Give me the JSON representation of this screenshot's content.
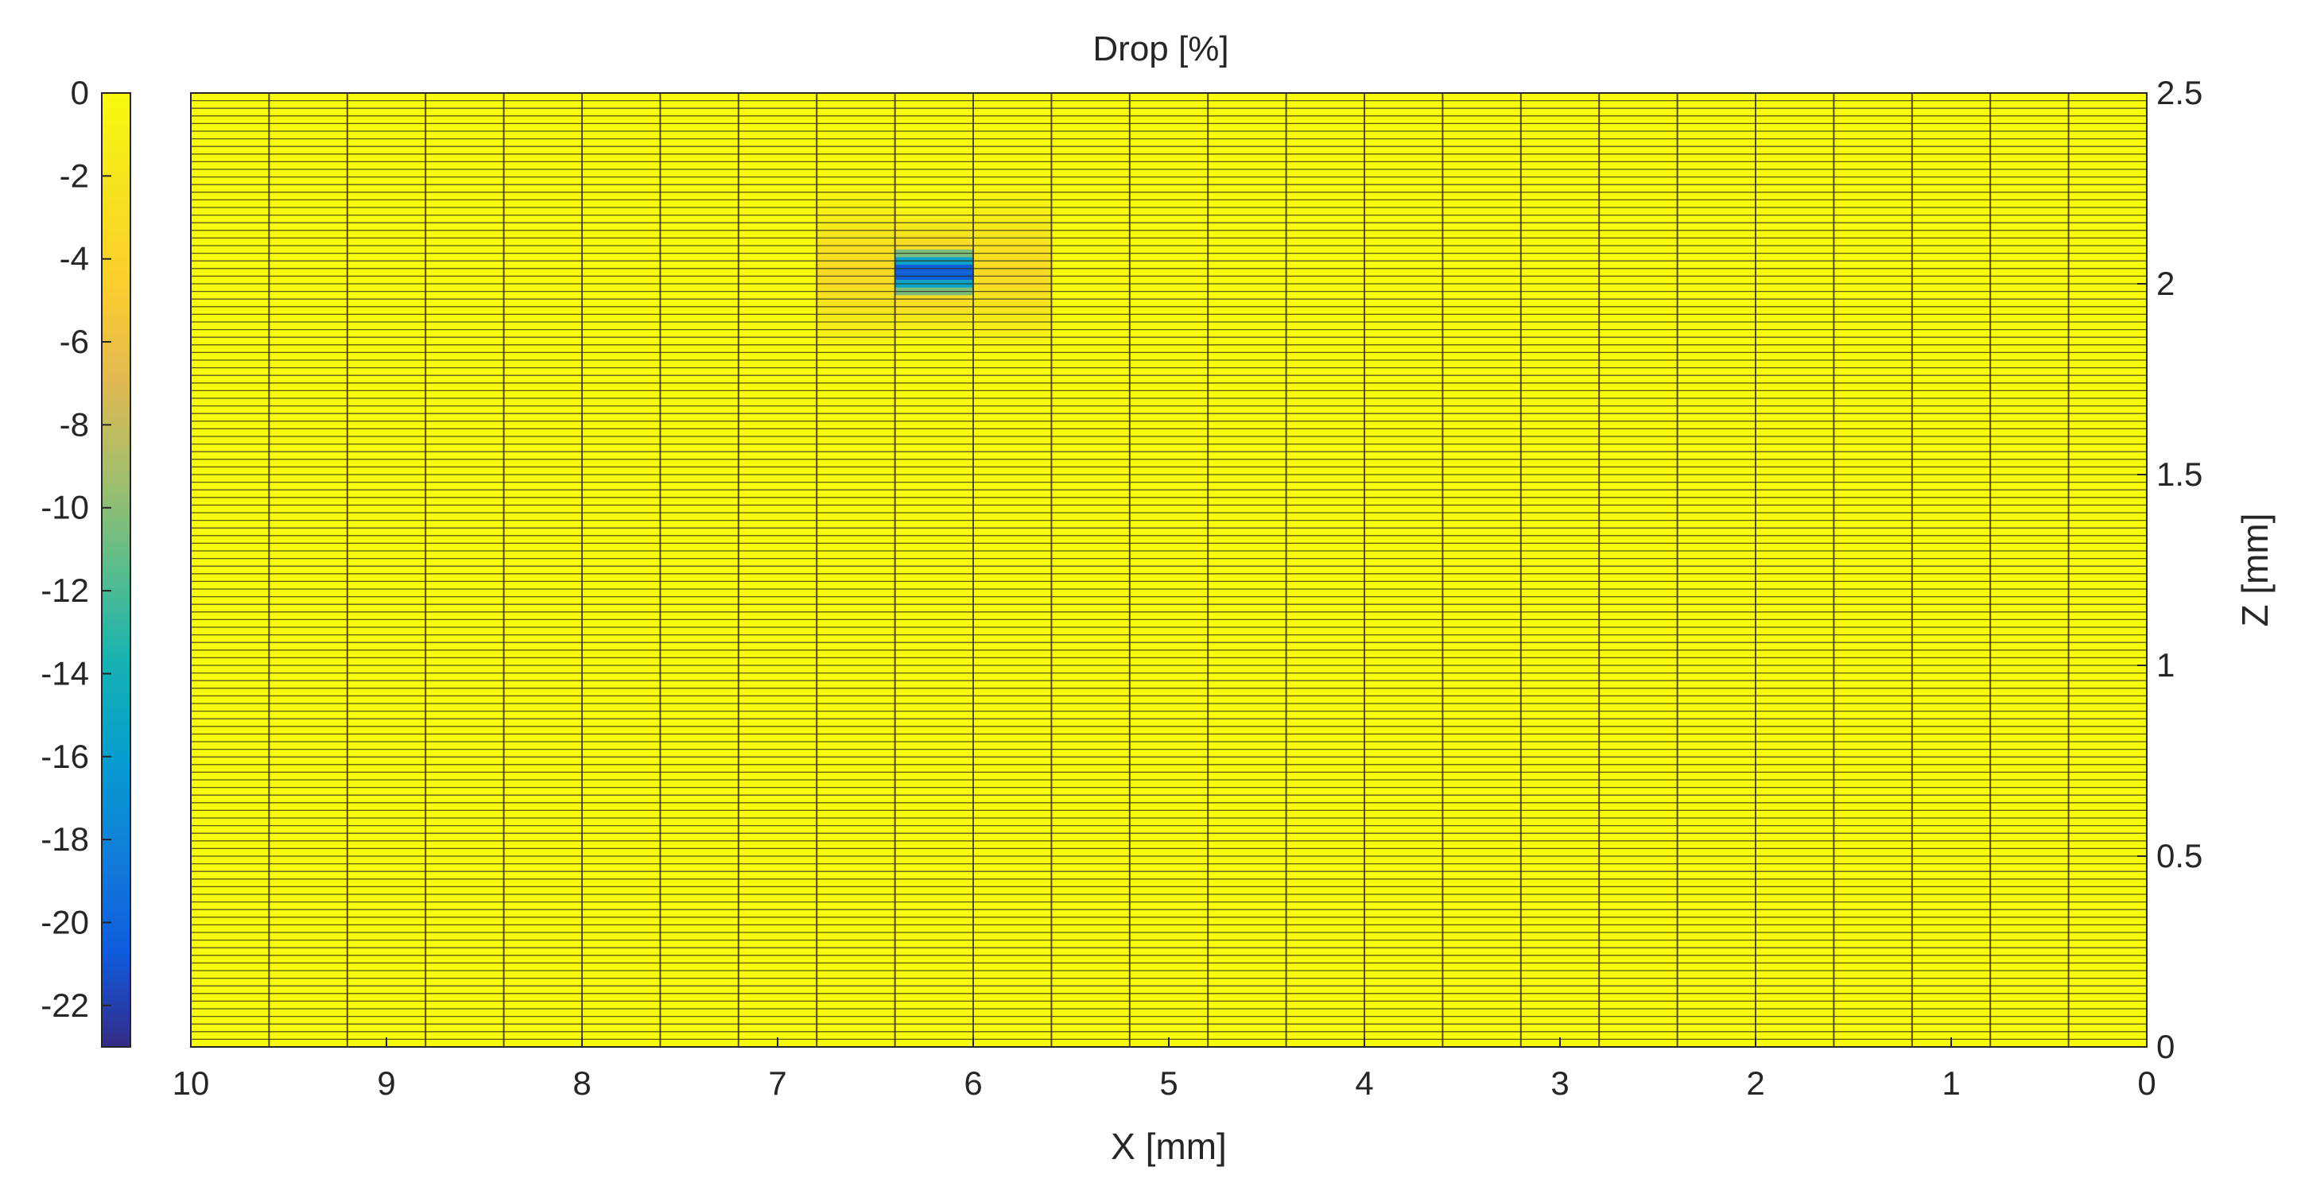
{
  "chart_data": {
    "type": "heatmap",
    "title": "Drop [%]",
    "xlabel": "X [mm]",
    "ylabel": "Z [mm]",
    "x_axis": {
      "range": [
        0,
        10
      ],
      "reversed": true,
      "ticks": [
        10,
        9,
        8,
        7,
        6,
        5,
        4,
        3,
        2,
        1,
        0
      ],
      "tick_labels": [
        "10",
        "9",
        "8",
        "7",
        "6",
        "5",
        "4",
        "3",
        "2",
        "1",
        "0"
      ]
    },
    "z_axis": {
      "range": [
        0,
        2.5
      ],
      "position": "right",
      "ticks": [
        2.5,
        2,
        1.5,
        1,
        0.5,
        0
      ],
      "tick_labels": [
        "2.5",
        "2",
        "1.5",
        "1",
        "0.5",
        "0"
      ]
    },
    "colorbar": {
      "position": "left",
      "range": [
        -23,
        0
      ],
      "colormap": "parula",
      "ticks": [
        0,
        -2,
        -4,
        -6,
        -8,
        -10,
        -12,
        -14,
        -16,
        -18,
        -20,
        -22
      ],
      "tick_labels": [
        "0",
        "-2",
        "-4",
        "-6",
        "-8",
        "-10",
        "-12",
        "-14",
        "-16",
        "-18",
        "-20",
        "-22"
      ]
    },
    "grid": {
      "x_lines": [
        0,
        0.4,
        0.8,
        1.2,
        1.6,
        2.0,
        2.4,
        2.8,
        3.2,
        3.6,
        4.0,
        4.4,
        4.8,
        5.2,
        5.6,
        6.0,
        6.4,
        6.8,
        7.2,
        7.6,
        8.0,
        8.4,
        8.8,
        9.2,
        9.6,
        10.0
      ],
      "z_cell_height": 0.02
    },
    "background_value": 0,
    "defect": {
      "x_range": [
        6.0,
        6.4
      ],
      "z_peak": 2.03,
      "min_value": -23,
      "halo_x_range": [
        5.6,
        6.8
      ],
      "halo_z_range": [
        1.83,
        2.25
      ],
      "halo_value": -3.5
    }
  }
}
